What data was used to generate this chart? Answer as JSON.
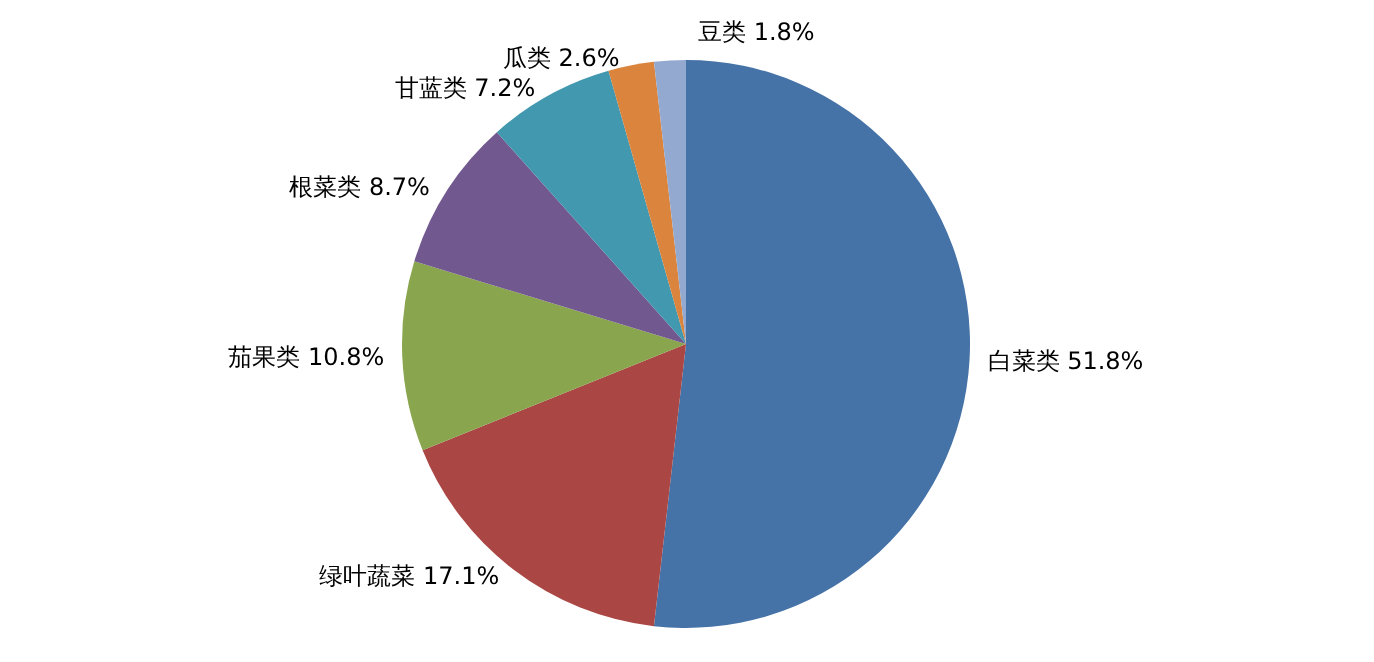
{
  "chart_data": {
    "type": "pie",
    "categories": [
      "白菜类",
      "绿叶蔬菜",
      "茄果类",
      "根菜类",
      "甘蓝类",
      "瓜类",
      "豆类"
    ],
    "values": [
      51.8,
      17.1,
      10.8,
      8.7,
      7.2,
      2.6,
      1.8
    ],
    "colors": [
      "#4572a7",
      "#aa4643",
      "#89a54e",
      "#71588f",
      "#4198af",
      "#db843d",
      "#93a9cf"
    ],
    "value_labels": [
      "51.8%",
      "17.1%",
      "10.8%",
      "8.7%",
      "7.2%",
      "2.6%",
      "1.8%"
    ],
    "legend": false
  }
}
